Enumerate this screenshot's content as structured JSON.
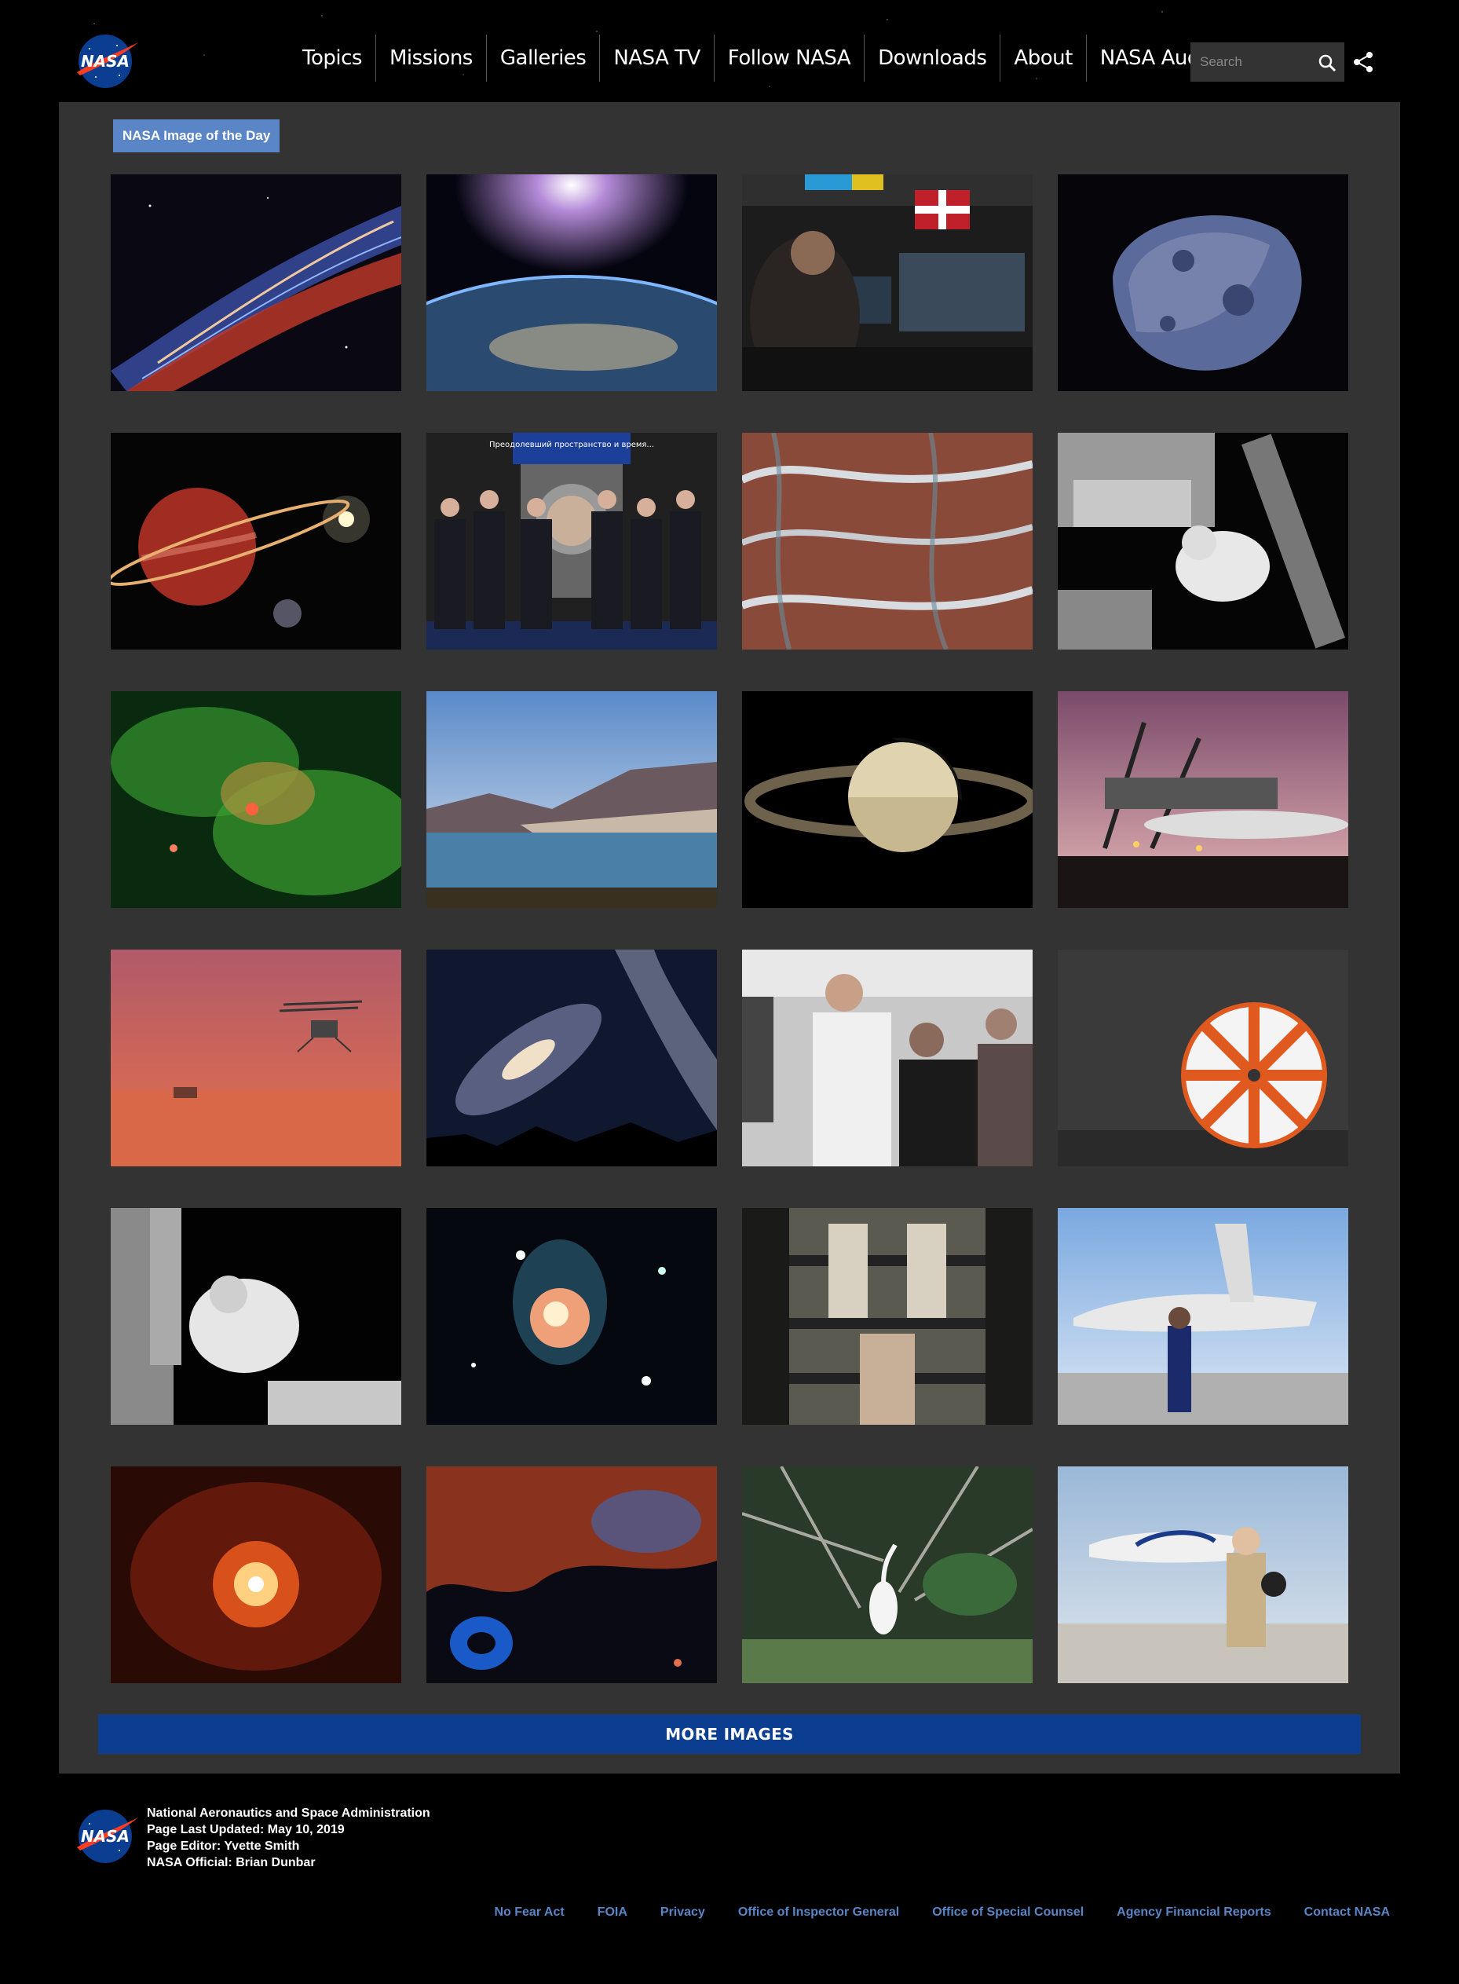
{
  "header": {
    "logo_text": "NASA",
    "logo_icon": "nasa-meatball-logo",
    "nav": [
      {
        "label": "Topics"
      },
      {
        "label": "Missions"
      },
      {
        "label": "Galleries"
      },
      {
        "label": "NASA TV"
      },
      {
        "label": "Follow NASA"
      },
      {
        "label": "Downloads"
      },
      {
        "label": "About"
      },
      {
        "label": "NASA Audiences"
      }
    ],
    "search": {
      "placeholder": "Search",
      "icon": "search-icon"
    },
    "share_icon": "share-icon"
  },
  "gallery": {
    "tag": "NASA Image of the Day",
    "images": [
      {
        "subject": "veil-nebula"
      },
      {
        "subject": "earth-sunrise"
      },
      {
        "subject": "mission-control"
      },
      {
        "subject": "psyche-asteroid"
      },
      {
        "subject": "ringed-exoplanet"
      },
      {
        "subject": "crew-portrait",
        "caption": "Преодолевший пространство и время..."
      },
      {
        "subject": "mars-dunes"
      },
      {
        "subject": "spacewalk-iss"
      },
      {
        "subject": "green-nebula"
      },
      {
        "subject": "lake-mead"
      },
      {
        "subject": "saturn"
      },
      {
        "subject": "shuttle-crane"
      },
      {
        "subject": "mars-helicopter"
      },
      {
        "subject": "milky-way-galaxy"
      },
      {
        "subject": "lab-engineers"
      },
      {
        "subject": "parachute-test"
      },
      {
        "subject": "astronaut-spacewalk"
      },
      {
        "subject": "planetary-nebula"
      },
      {
        "subject": "vehicle-assembly"
      },
      {
        "subject": "astronaut-t38-blue"
      },
      {
        "subject": "supernova-remnant"
      },
      {
        "subject": "nebula-pair"
      },
      {
        "subject": "white-egret"
      },
      {
        "subject": "astronaut-t38-tan"
      }
    ],
    "more_label": "MORE IMAGES"
  },
  "footer": {
    "agency": "National Aeronautics and Space Administration",
    "updated": "Page Last Updated: May 10, 2019",
    "editor": "Page Editor: Yvette Smith",
    "official": "NASA Official: Brian Dunbar",
    "links": [
      {
        "label": "No Fear Act"
      },
      {
        "label": "FOIA"
      },
      {
        "label": "Privacy"
      },
      {
        "label": "Office of Inspector General"
      },
      {
        "label": "Office of Special Counsel"
      },
      {
        "label": "Agency Financial Reports"
      },
      {
        "label": "Contact NASA"
      }
    ]
  },
  "colors": {
    "page_bg": "#000000",
    "panel_bg": "#333333",
    "tag_bg": "#5a85c7",
    "button_bg": "#0b3d91",
    "link": "#5a85c7"
  }
}
